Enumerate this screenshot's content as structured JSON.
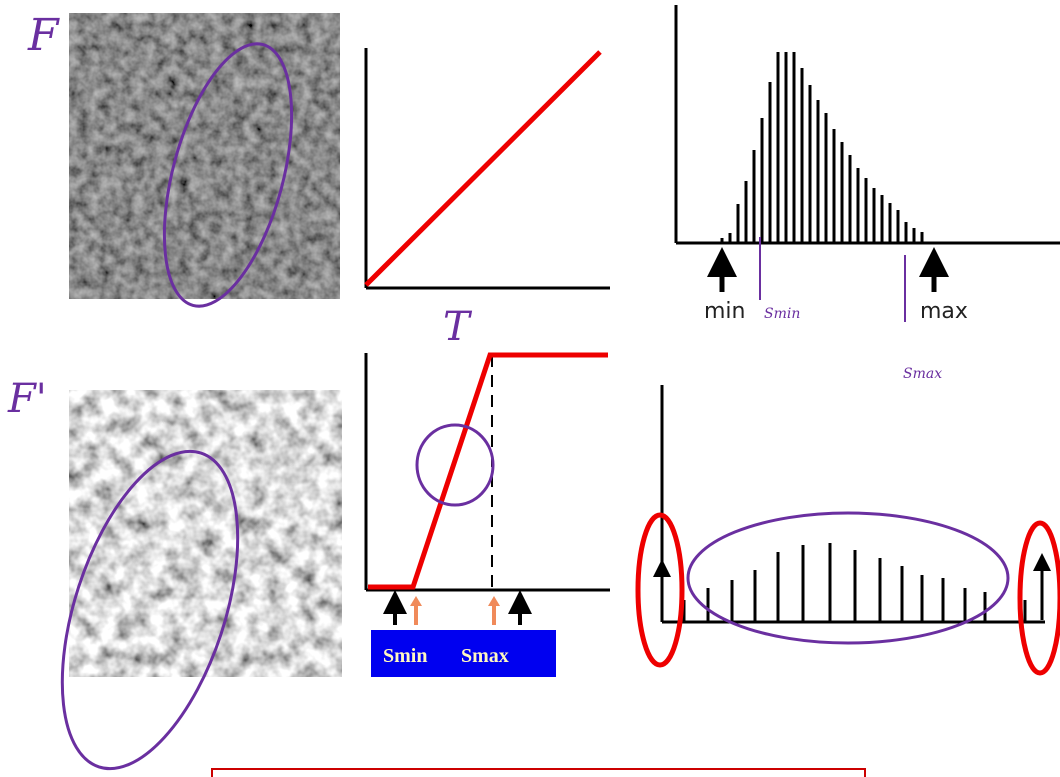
{
  "images": {
    "original_label": "F",
    "stretched_label": "F'"
  },
  "transform_label": "T",
  "histogram": {
    "min_label": "min",
    "max_label": "max",
    "smin_note": "Smin",
    "smax_note": "Smax"
  },
  "stretch_box": {
    "smin": "Smin",
    "smax": "Smax"
  }
}
